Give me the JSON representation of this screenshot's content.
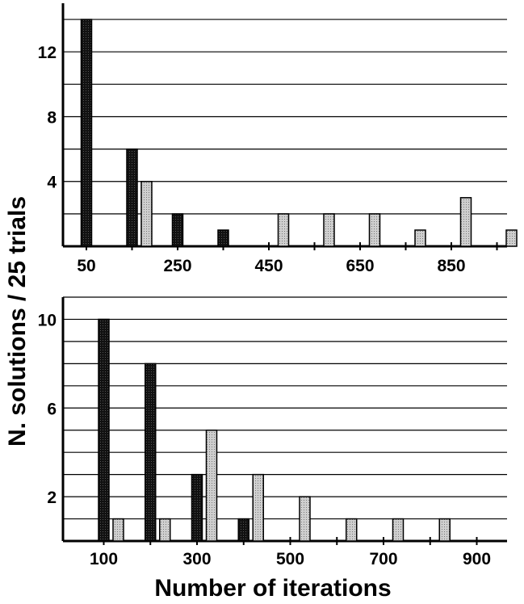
{
  "figure": {
    "ylabel": "N. solutions / 25 trials",
    "xlabel": "Number of iterations"
  },
  "colors": {
    "dark_series": "#111111",
    "light_series": "#c8c8c8",
    "axis": "#000000",
    "grid": "#000000"
  },
  "chart_data": [
    {
      "type": "bar",
      "panel": "top",
      "xlabel": "",
      "ylabel": "",
      "grid": "horizontal",
      "x_tick_labels": [
        "50",
        "250",
        "450",
        "650",
        "850"
      ],
      "y_tick_labels": [
        "4",
        "8",
        "12"
      ],
      "ylim": [
        0,
        15
      ],
      "categories": [
        "50",
        "150",
        "250",
        "350",
        "450",
        "550",
        "650",
        "750",
        "850",
        "950"
      ],
      "series": [
        {
          "key": "dark",
          "values": [
            14,
            6,
            2,
            1,
            0,
            0,
            0,
            0,
            0,
            0
          ]
        },
        {
          "key": "light",
          "values": [
            0,
            4,
            0,
            0,
            2,
            2,
            2,
            1,
            3,
            1
          ]
        }
      ]
    },
    {
      "type": "bar",
      "panel": "bottom",
      "xlabel": "",
      "ylabel": "",
      "grid": "horizontal",
      "x_tick_labels": [
        "100",
        "300",
        "500",
        "700",
        "900"
      ],
      "y_tick_labels": [
        "2",
        "6",
        "10"
      ],
      "ylim": [
        0,
        11
      ],
      "categories": [
        "100",
        "200",
        "300",
        "400",
        "500",
        "600",
        "700",
        "800",
        "900"
      ],
      "series": [
        {
          "key": "dark",
          "values": [
            10,
            8,
            3,
            1,
            0,
            0,
            0,
            0,
            0
          ]
        },
        {
          "key": "light",
          "values": [
            1,
            1,
            5,
            3,
            2,
            1,
            1,
            1,
            0
          ]
        }
      ]
    }
  ]
}
